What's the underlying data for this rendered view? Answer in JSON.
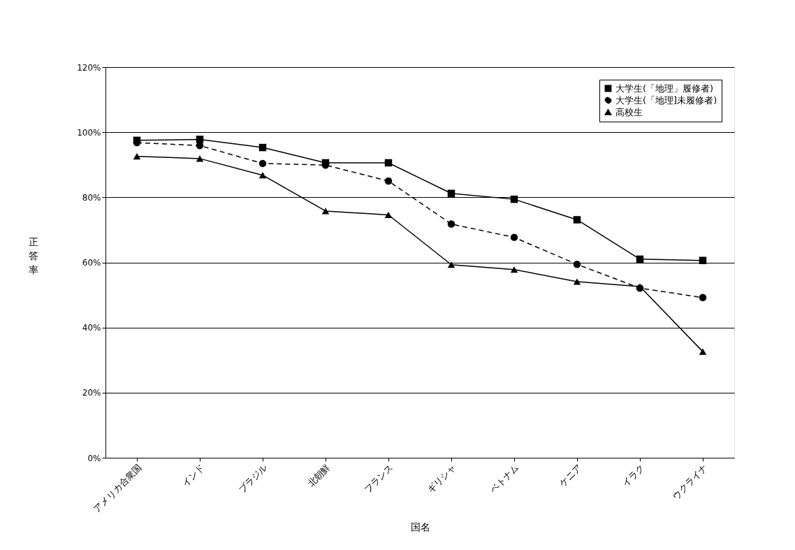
{
  "chart_data": {
    "type": "line",
    "xlabel": "国名",
    "ylabel": "正答率",
    "categories": [
      "アメリカ合衆国",
      "インド",
      "ブラジル",
      "北朝鮮",
      "フランス",
      "ギリシャ",
      "ベトナム",
      "ケニア",
      "イラク",
      "ウクライナ"
    ],
    "series": [
      {
        "name": "大学生(「地理」履修者)",
        "color": "#000000",
        "marker": "square",
        "line_style": "solid",
        "values": [
          97.5,
          97.8,
          95.3,
          90.6,
          90.6,
          81.2,
          79.4,
          73.1,
          61.0,
          60.6
        ]
      },
      {
        "name": "大学生(「地理]未履修者)",
        "color": "#000000",
        "marker": "circle",
        "line_style": "dashed",
        "values": [
          96.8,
          95.9,
          90.4,
          89.9,
          85.0,
          71.8,
          67.7,
          59.4,
          52.1,
          49.2
        ]
      },
      {
        "name": "高校生",
        "color": "#000000",
        "marker": "triangle",
        "line_style": "solid",
        "values": [
          92.6,
          91.9,
          86.8,
          75.8,
          74.6,
          59.3,
          57.8,
          54.1,
          52.6,
          32.6
        ]
      }
    ],
    "ylim": [
      0,
      120
    ],
    "yticks": [
      {
        "value": 0,
        "label": "0%"
      },
      {
        "value": 20,
        "label": "20%"
      },
      {
        "value": 40,
        "label": "40%"
      },
      {
        "value": 60,
        "label": "60%"
      },
      {
        "value": 80,
        "label": "80%"
      },
      {
        "value": 100,
        "label": "100%"
      },
      {
        "value": 120,
        "label": "120%"
      }
    ],
    "grid": "y",
    "legend": "top right"
  }
}
